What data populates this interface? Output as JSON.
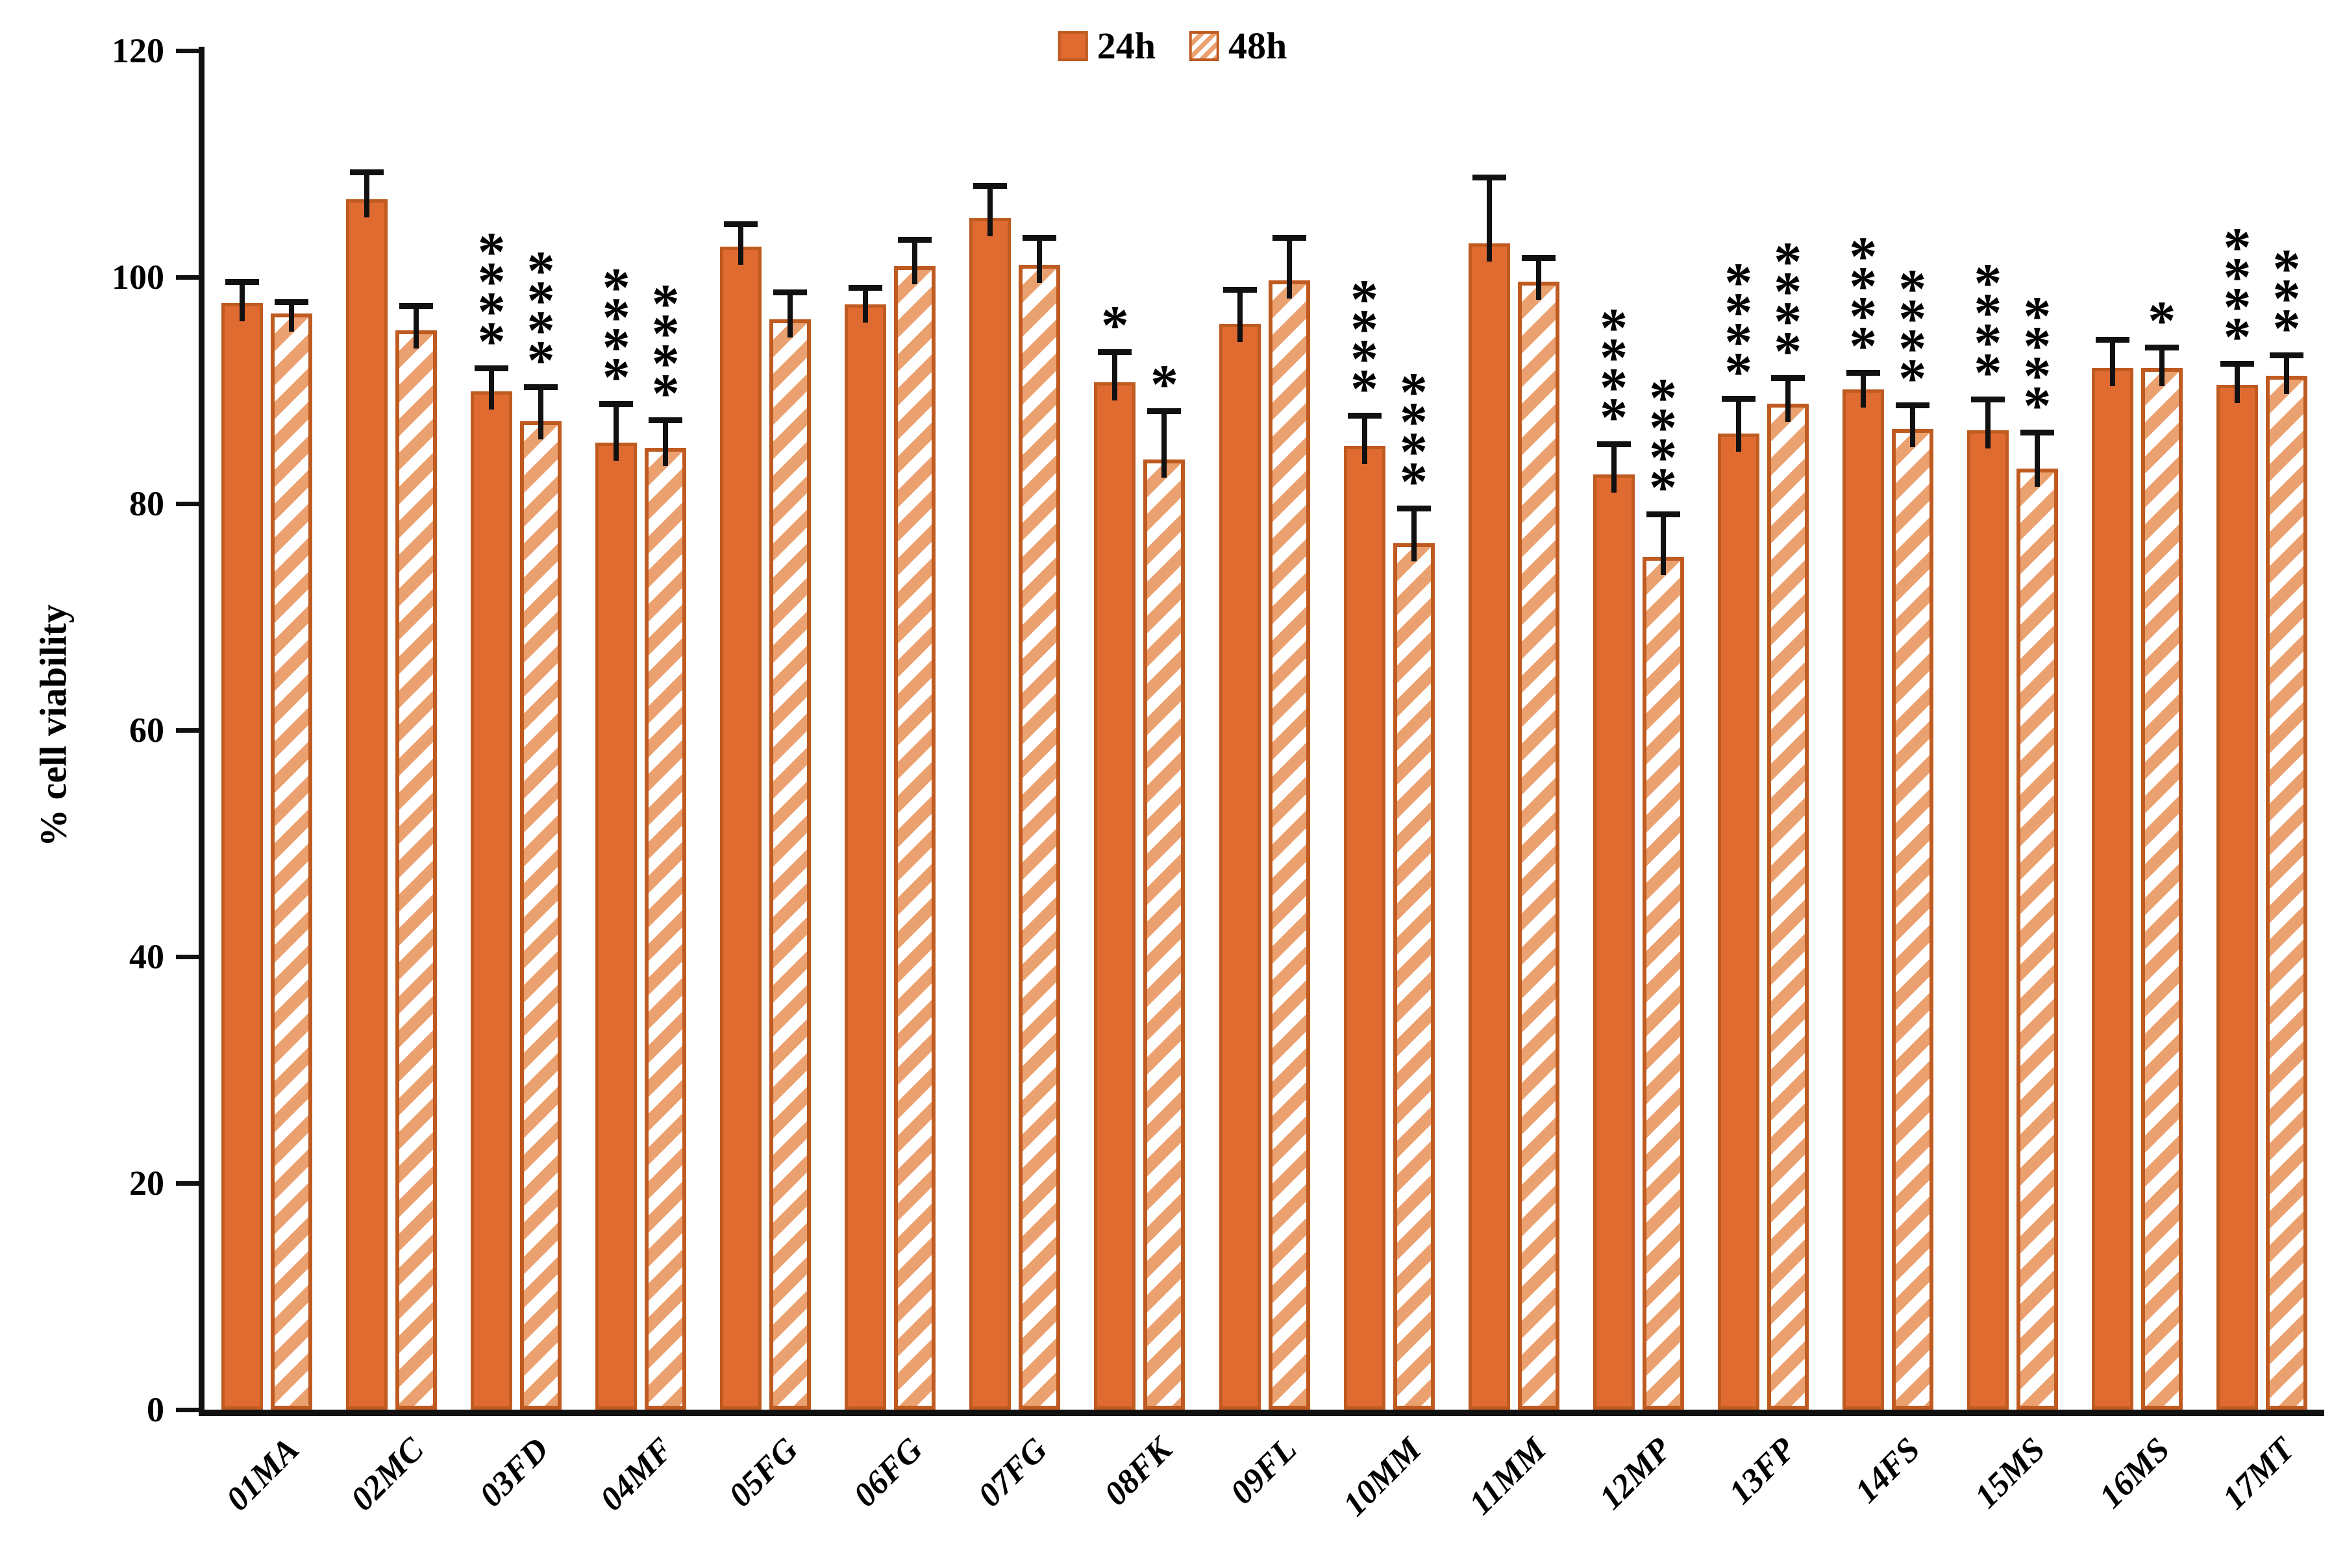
{
  "colors": {
    "bar_fill": "#E06B31",
    "bar_border": "#BF5B21",
    "hatch_stripe": "#EBA06F",
    "axis": "#111111",
    "error": "#111111",
    "text": "#000000",
    "background": "#FFFFFF"
  },
  "legend": {
    "position": "top-center",
    "items": [
      {
        "label": "24h",
        "swatch": "solid-square-icon"
      },
      {
        "label": "48h",
        "swatch": "hatched-square-icon"
      }
    ]
  },
  "chart_data": {
    "type": "bar",
    "title": "",
    "xlabel": "",
    "ylabel": "% cell viability",
    "ylim": [
      0,
      120
    ],
    "yticks": [
      0,
      20,
      40,
      60,
      80,
      100,
      120
    ],
    "grid": false,
    "legend_position": "top-center",
    "error_bars": "upper-only",
    "categories": [
      "01MA",
      "02MC",
      "03FD",
      "04MF",
      "05FG",
      "06FG",
      "07FG",
      "08FK",
      "09FL",
      "10MM",
      "11MM",
      "12MP",
      "13FP",
      "14FS",
      "15MS",
      "16MS",
      "17MT"
    ],
    "series": [
      {
        "name": "24h",
        "style": "solid",
        "values": [
          97.7,
          106.9,
          89.9,
          85.4,
          102.7,
          97.6,
          105.2,
          90.7,
          95.9,
          85.1,
          103.0,
          82.6,
          86.2,
          90.1,
          86.5,
          92.0,
          90.5
        ],
        "errors": [
          1.9,
          2.4,
          2.1,
          3.4,
          2.0,
          1.5,
          2.9,
          2.7,
          3.0,
          2.7,
          5.8,
          2.7,
          3.1,
          1.5,
          2.7,
          2.5,
          1.9
        ],
        "sig": [
          "",
          "",
          "****",
          "****",
          "",
          "",
          "",
          "*",
          "",
          "****",
          "",
          "****",
          "****",
          "****",
          "****",
          "",
          "****"
        ]
      },
      {
        "name": "48h",
        "style": "hatched",
        "values": [
          96.8,
          95.3,
          87.3,
          84.9,
          96.3,
          101.0,
          101.1,
          83.9,
          99.7,
          76.5,
          99.6,
          75.3,
          88.8,
          86.6,
          83.1,
          92.0,
          91.3
        ],
        "errors": [
          1.0,
          2.2,
          3.0,
          2.5,
          2.4,
          2.3,
          2.4,
          4.3,
          3.8,
          3.1,
          2.1,
          3.8,
          2.3,
          2.1,
          3.2,
          1.8,
          1.8
        ],
        "sig": [
          "",
          "",
          "****",
          "****",
          "",
          "",
          "",
          "*",
          "",
          "****",
          "",
          "****",
          "****",
          "****",
          "****",
          "*",
          "***"
        ]
      }
    ]
  }
}
